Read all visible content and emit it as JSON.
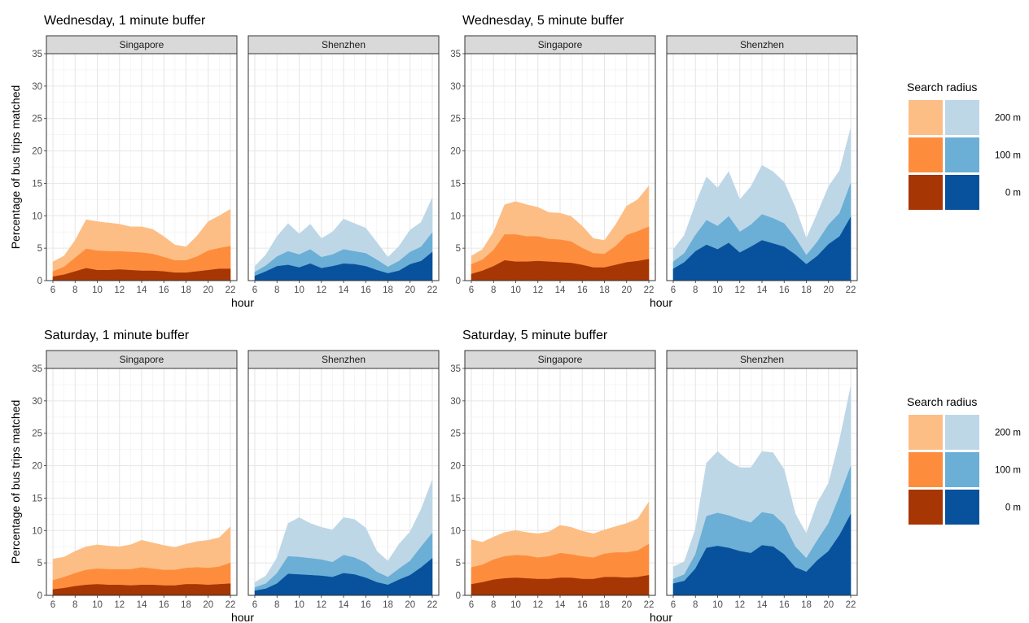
{
  "chart_data": {
    "type": "area",
    "stacked": false,
    "x_label": "hour",
    "y_label": "Percentage of bus trips matched",
    "x_ticks": [
      6,
      8,
      10,
      12,
      14,
      16,
      18,
      20,
      22
    ],
    "y_ticks": [
      0,
      5,
      10,
      15,
      20,
      25,
      30,
      35
    ],
    "x_range": [
      6,
      22
    ],
    "y_range": [
      0,
      35
    ],
    "x": [
      6,
      7,
      8,
      9,
      10,
      11,
      12,
      13,
      14,
      15,
      16,
      17,
      18,
      19,
      20,
      21,
      22
    ],
    "grid": true,
    "legend_placement": "right",
    "legend": {
      "title": "Search radius",
      "labels": [
        "200 m",
        "100 m",
        "0 m"
      ]
    },
    "colors": {
      "Singapore": {
        "200 m": "#FDBE85",
        "100 m": "#FD8D3C",
        "0 m": "#A63603"
      },
      "Shenzhen": {
        "200 m": "#BDD7E7",
        "100 m": "#6BAED6",
        "0 m": "#08519C"
      }
    },
    "rows": [
      {
        "panels": [
          {
            "title": "Wednesday, 1 minute buffer",
            "facets": [
              {
                "city": "Singapore",
                "series": [
                  {
                    "name": "200 m",
                    "values": [
                      2.9,
                      3.8,
                      6.2,
                      9.4,
                      9.1,
                      8.9,
                      8.7,
                      8.3,
                      8.3,
                      7.9,
                      6.8,
                      5.5,
                      5.2,
                      6.9,
                      9.1,
                      10.0,
                      11.0
                    ]
                  },
                  {
                    "name": "100 m",
                    "values": [
                      1.4,
                      2.1,
                      3.5,
                      4.9,
                      4.6,
                      4.5,
                      4.5,
                      4.4,
                      4.3,
                      4.1,
                      3.6,
                      3.1,
                      3.1,
                      3.7,
                      4.6,
                      5.0,
                      5.3
                    ]
                  },
                  {
                    "name": "0 m",
                    "values": [
                      0.6,
                      0.9,
                      1.4,
                      1.9,
                      1.6,
                      1.6,
                      1.7,
                      1.6,
                      1.5,
                      1.5,
                      1.4,
                      1.2,
                      1.2,
                      1.4,
                      1.6,
                      1.8,
                      1.8
                    ]
                  }
                ]
              },
              {
                "city": "Shenzhen",
                "series": [
                  {
                    "name": "200 m",
                    "values": [
                      2.2,
                      4.0,
                      6.8,
                      8.8,
                      7.2,
                      8.7,
                      6.5,
                      7.5,
                      9.5,
                      8.8,
                      8.1,
                      5.9,
                      3.6,
                      5.3,
                      7.8,
                      9.0,
                      12.8
                    ]
                  },
                  {
                    "name": "100 m",
                    "values": [
                      1.3,
                      2.3,
                      3.7,
                      4.5,
                      4.0,
                      4.8,
                      3.6,
                      4.0,
                      4.8,
                      4.5,
                      4.2,
                      3.2,
                      2.1,
                      3.0,
                      4.4,
                      5.2,
                      7.4
                    ]
                  },
                  {
                    "name": "0 m",
                    "values": [
                      0.7,
                      1.4,
                      2.2,
                      2.4,
                      2.0,
                      2.6,
                      1.9,
                      2.2,
                      2.6,
                      2.5,
                      2.2,
                      1.6,
                      1.1,
                      1.5,
                      2.5,
                      3.0,
                      4.4
                    ]
                  }
                ]
              }
            ]
          },
          {
            "title": "Wednesday, 5 minute buffer",
            "facets": [
              {
                "city": "Singapore",
                "series": [
                  {
                    "name": "200 m",
                    "values": [
                      3.8,
                      4.8,
                      7.5,
                      11.7,
                      12.2,
                      11.7,
                      11.3,
                      10.5,
                      10.4,
                      9.9,
                      8.4,
                      6.5,
                      6.2,
                      8.6,
                      11.5,
                      12.5,
                      14.6
                    ]
                  },
                  {
                    "name": "100 m",
                    "values": [
                      2.5,
                      3.2,
                      4.7,
                      7.1,
                      7.1,
                      6.8,
                      6.8,
                      6.4,
                      6.3,
                      6.0,
                      5.0,
                      4.2,
                      4.1,
                      5.3,
                      7.0,
                      7.6,
                      8.3
                    ]
                  },
                  {
                    "name": "0 m",
                    "values": [
                      1.0,
                      1.5,
                      2.2,
                      3.1,
                      2.9,
                      2.9,
                      3.0,
                      2.9,
                      2.8,
                      2.7,
                      2.4,
                      2.0,
                      2.0,
                      2.4,
                      2.8,
                      3.0,
                      3.3
                    ]
                  }
                ]
              },
              {
                "city": "Shenzhen",
                "series": [
                  {
                    "name": "200 m",
                    "values": [
                      4.8,
                      7.0,
                      11.8,
                      16.0,
                      14.3,
                      16.8,
                      12.5,
                      14.5,
                      17.8,
                      16.8,
                      15.2,
                      11.3,
                      6.5,
                      10.4,
                      14.5,
                      17.0,
                      23.5
                    ]
                  },
                  {
                    "name": "100 m",
                    "values": [
                      2.9,
                      4.2,
                      7.0,
                      9.3,
                      8.4,
                      9.9,
                      7.5,
                      8.6,
                      10.2,
                      9.6,
                      8.8,
                      6.6,
                      3.9,
                      6.0,
                      8.6,
                      10.4,
                      15.0
                    ]
                  },
                  {
                    "name": "0 m",
                    "values": [
                      1.8,
                      2.8,
                      4.5,
                      5.5,
                      4.8,
                      5.8,
                      4.3,
                      5.2,
                      6.2,
                      5.7,
                      5.2,
                      4.0,
                      2.5,
                      3.8,
                      5.6,
                      6.8,
                      9.8
                    ]
                  }
                ]
              }
            ]
          }
        ]
      },
      {
        "panels": [
          {
            "title": "Saturday, 1 minute buffer",
            "facets": [
              {
                "city": "Singapore",
                "series": [
                  {
                    "name": "200 m",
                    "values": [
                      5.6,
                      5.9,
                      6.8,
                      7.5,
                      7.8,
                      7.6,
                      7.5,
                      7.8,
                      8.5,
                      8.1,
                      7.7,
                      7.4,
                      7.9,
                      8.3,
                      8.5,
                      8.9,
                      10.6
                    ]
                  },
                  {
                    "name": "100 m",
                    "values": [
                      2.3,
                      2.8,
                      3.4,
                      3.9,
                      4.1,
                      4.0,
                      4.0,
                      4.0,
                      4.3,
                      4.1,
                      3.9,
                      3.9,
                      4.2,
                      4.3,
                      4.2,
                      4.4,
                      5.0
                    ]
                  },
                  {
                    "name": "0 m",
                    "values": [
                      0.9,
                      1.1,
                      1.4,
                      1.6,
                      1.7,
                      1.6,
                      1.6,
                      1.5,
                      1.6,
                      1.6,
                      1.5,
                      1.5,
                      1.7,
                      1.7,
                      1.6,
                      1.7,
                      1.8
                    ]
                  }
                ]
              },
              {
                "city": "Shenzhen",
                "series": [
                  {
                    "name": "200 m",
                    "values": [
                      2.0,
                      3.0,
                      5.8,
                      11.1,
                      12.0,
                      11.1,
                      10.5,
                      10.1,
                      12.0,
                      11.7,
                      10.4,
                      6.8,
                      5.3,
                      7.9,
                      9.8,
                      13.3,
                      17.8
                    ]
                  },
                  {
                    "name": "100 m",
                    "values": [
                      1.2,
                      1.8,
                      3.4,
                      6.0,
                      5.9,
                      5.7,
                      5.5,
                      5.1,
                      6.2,
                      5.8,
                      5.0,
                      3.6,
                      2.8,
                      4.1,
                      5.3,
                      7.5,
                      9.6
                    ]
                  },
                  {
                    "name": "0 m",
                    "values": [
                      0.7,
                      1.0,
                      1.8,
                      3.3,
                      3.2,
                      3.1,
                      3.0,
                      2.8,
                      3.4,
                      3.2,
                      2.7,
                      2.0,
                      1.6,
                      2.4,
                      3.1,
                      4.3,
                      5.7
                    ]
                  }
                ]
              }
            ]
          },
          {
            "title": "Saturday, 5 minute buffer",
            "facets": [
              {
                "city": "Singapore",
                "series": [
                  {
                    "name": "200 m",
                    "values": [
                      8.6,
                      8.2,
                      9.0,
                      9.7,
                      10.0,
                      9.7,
                      9.5,
                      9.8,
                      10.8,
                      10.5,
                      9.9,
                      9.5,
                      10.1,
                      10.6,
                      11.1,
                      11.8,
                      14.4
                    ]
                  },
                  {
                    "name": "100 m",
                    "values": [
                      4.3,
                      4.7,
                      5.5,
                      6.0,
                      6.2,
                      6.1,
                      5.8,
                      6.0,
                      6.5,
                      6.3,
                      6.0,
                      5.8,
                      6.4,
                      6.6,
                      6.6,
                      6.9,
                      7.9
                    ]
                  },
                  {
                    "name": "0 m",
                    "values": [
                      1.7,
                      2.0,
                      2.4,
                      2.6,
                      2.7,
                      2.6,
                      2.5,
                      2.5,
                      2.7,
                      2.7,
                      2.5,
                      2.5,
                      2.8,
                      2.8,
                      2.7,
                      2.8,
                      3.1
                    ]
                  }
                ]
              },
              {
                "city": "Shenzhen",
                "series": [
                  {
                    "name": "200 m",
                    "values": [
                      4.4,
                      5.2,
                      10.2,
                      20.4,
                      22.2,
                      20.7,
                      19.7,
                      19.7,
                      22.2,
                      22.0,
                      19.4,
                      12.6,
                      9.5,
                      14.3,
                      17.3,
                      24.0,
                      32.2
                    ]
                  },
                  {
                    "name": "100 m",
                    "values": [
                      2.5,
                      3.2,
                      6.3,
                      12.2,
                      12.7,
                      12.3,
                      11.7,
                      11.2,
                      12.8,
                      12.5,
                      10.9,
                      7.5,
                      5.7,
                      8.5,
                      11.1,
                      15.3,
                      19.9
                    ]
                  },
                  {
                    "name": "0 m",
                    "values": [
                      1.8,
                      2.2,
                      4.1,
                      7.3,
                      7.6,
                      7.3,
                      6.8,
                      6.5,
                      7.7,
                      7.5,
                      6.3,
                      4.3,
                      3.6,
                      5.4,
                      6.8,
                      9.3,
                      12.5
                    ]
                  }
                ]
              }
            ]
          }
        ]
      }
    ]
  }
}
